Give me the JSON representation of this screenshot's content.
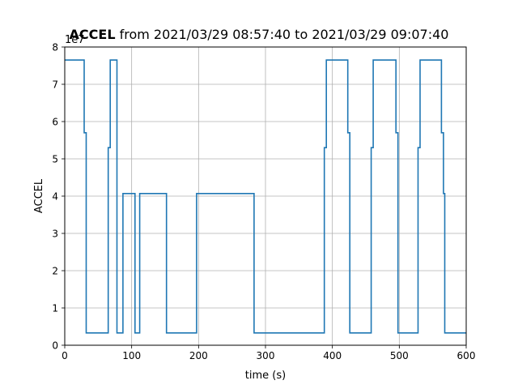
{
  "title_bold": "ACCEL",
  "title_rest": " from 2021/03/29 08:57:40 to 2021/03/29 09:07:40",
  "chart_data": {
    "type": "line",
    "step": true,
    "title": "ACCEL from 2021/03/29 08:57:40 to 2021/03/29 09:07:40",
    "xlabel": "time (s)",
    "ylabel": "ACCEL",
    "y_offset_label": "1e7",
    "xlim": [
      0,
      600
    ],
    "ylim": [
      0,
      8
    ],
    "xticks": [
      0,
      100,
      200,
      300,
      400,
      500,
      600
    ],
    "yticks": [
      0,
      1,
      2,
      3,
      4,
      5,
      6,
      7,
      8
    ],
    "grid": true,
    "line_color": "#1f77b4",
    "x": [
      0,
      29,
      29,
      32,
      32,
      65,
      65,
      68,
      68,
      78,
      78,
      87,
      87,
      105,
      105,
      112,
      112,
      152,
      152,
      197,
      197,
      283,
      283,
      388,
      388,
      391,
      391,
      423,
      423,
      426,
      426,
      458,
      458,
      461,
      461,
      495,
      495,
      498,
      498,
      528,
      528,
      531,
      531,
      563,
      563,
      566,
      566,
      568,
      568,
      600
    ],
    "y": [
      7.65,
      7.65,
      5.7,
      5.7,
      0.33,
      0.33,
      5.3,
      5.3,
      7.65,
      7.65,
      0.33,
      0.33,
      4.07,
      4.07,
      0.33,
      0.33,
      4.07,
      4.07,
      0.33,
      0.33,
      4.07,
      4.07,
      0.33,
      0.33,
      5.3,
      5.3,
      7.65,
      7.65,
      5.7,
      5.7,
      0.33,
      0.33,
      5.3,
      5.3,
      7.65,
      7.65,
      5.7,
      5.7,
      0.33,
      0.33,
      5.3,
      5.3,
      7.65,
      7.65,
      5.7,
      5.7,
      4.07,
      4.07,
      0.33,
      0.33
    ]
  }
}
